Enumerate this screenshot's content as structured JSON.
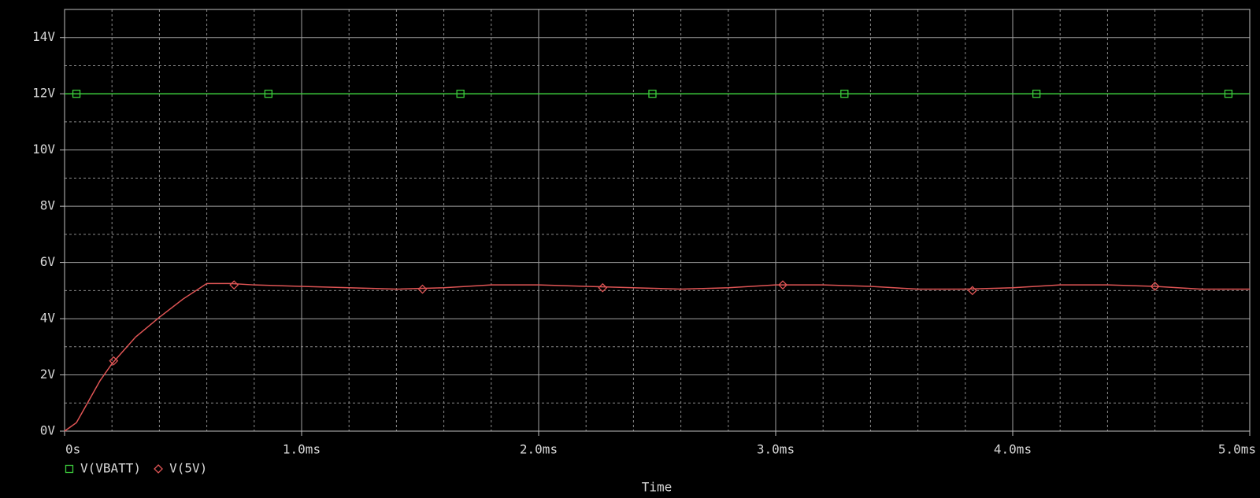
{
  "chart_data": {
    "type": "line",
    "x_label": "Time",
    "xlim": [
      0,
      5
    ],
    "xticks": [
      {
        "value": 0,
        "label": "0s"
      },
      {
        "value": 1,
        "label": "1.0ms"
      },
      {
        "value": 2,
        "label": "2.0ms"
      },
      {
        "value": 3,
        "label": "3.0ms"
      },
      {
        "value": 4,
        "label": "4.0ms"
      },
      {
        "value": 5,
        "label": "5.0ms"
      }
    ],
    "x_minor_grid": [
      0.2,
      0.4,
      0.6,
      0.8,
      1.2,
      1.4,
      1.6,
      1.8,
      2.2,
      2.4,
      2.6,
      2.8,
      3.2,
      3.4,
      3.6,
      3.8,
      4.2,
      4.4,
      4.6,
      4.8
    ],
    "ylim": [
      0,
      15
    ],
    "yticks": [
      {
        "value": 0,
        "label": "0V"
      },
      {
        "value": 2,
        "label": "2V"
      },
      {
        "value": 4,
        "label": "4V"
      },
      {
        "value": 6,
        "label": "6V"
      },
      {
        "value": 8,
        "label": "8V"
      },
      {
        "value": 10,
        "label": "10V"
      },
      {
        "value": 12,
        "label": "12V"
      },
      {
        "value": 14,
        "label": "14V"
      }
    ],
    "y_minor_grid": [
      1,
      3,
      5,
      7,
      9,
      11,
      13,
      15
    ],
    "grid": true,
    "legend": "bottom-left",
    "series": [
      {
        "name": "V(VBATT)",
        "color": "#3ccc3c",
        "marker": "square",
        "x": [
          0,
          5
        ],
        "values": [
          12,
          12
        ],
        "markers": {
          "x": [
            0.05,
            0.86,
            1.67,
            2.48,
            3.29,
            4.1,
            4.91
          ],
          "values": [
            12,
            12,
            12,
            12,
            12,
            12,
            12
          ]
        }
      },
      {
        "name": "V(5V)",
        "color": "#e05555",
        "marker": "diamond",
        "x": [
          0,
          0.05,
          0.1,
          0.15,
          0.2,
          0.3,
          0.4,
          0.5,
          0.6,
          0.7,
          0.8,
          1.0,
          1.2,
          1.4,
          1.6,
          1.8,
          2.0,
          2.2,
          2.4,
          2.6,
          2.8,
          3.0,
          3.2,
          3.4,
          3.6,
          3.8,
          4.0,
          4.2,
          4.4,
          4.6,
          4.8,
          5.0
        ],
        "values": [
          0,
          0.3,
          1.05,
          1.8,
          2.4,
          3.35,
          4.05,
          4.7,
          5.25,
          5.25,
          5.2,
          5.15,
          5.1,
          5.05,
          5.1,
          5.2,
          5.2,
          5.15,
          5.1,
          5.05,
          5.1,
          5.2,
          5.2,
          5.15,
          5.05,
          5.05,
          5.1,
          5.2,
          5.2,
          5.15,
          5.05,
          5.05
        ],
        "markers": {
          "x": [
            0.207,
            0.715,
            1.51,
            2.27,
            3.03,
            3.83,
            4.6
          ],
          "values": [
            2.5,
            5.2,
            5.05,
            5.1,
            5.2,
            5.0,
            5.15
          ]
        }
      }
    ]
  }
}
